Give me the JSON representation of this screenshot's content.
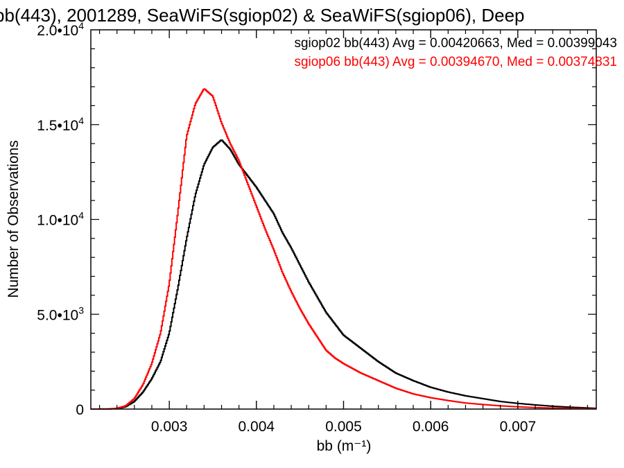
{
  "chart_data": {
    "type": "line",
    "title": "bb(443), 2001289, SeaWiFS(sgiop02) & SeaWiFS(sgiop06), Deep",
    "xlabel": "bb (m⁻¹)",
    "ylabel": "Number of Observations",
    "xlim": [
      0.0021,
      0.0079
    ],
    "ylim": [
      0,
      20000
    ],
    "xticks": [
      {
        "value": 0.003,
        "label": "0.003"
      },
      {
        "value": 0.004,
        "label": "0.004"
      },
      {
        "value": 0.005,
        "label": "0.005"
      },
      {
        "value": 0.006,
        "label": "0.006"
      },
      {
        "value": 0.007,
        "label": "0.007"
      }
    ],
    "yticks": [
      {
        "value": 0,
        "label": "0"
      },
      {
        "value": 5000,
        "label": "5.0•10³"
      },
      {
        "value": 10000,
        "label": "1.0•10⁴"
      },
      {
        "value": 15000,
        "label": "1.5•10⁴"
      },
      {
        "value": 20000,
        "label": "2.0•10⁴"
      }
    ],
    "grid": false,
    "legend_position": "top-right",
    "series": [
      {
        "name": "sgiop02",
        "color": "#000000",
        "legend": "sgiop02 bb(443) Avg = 0.00420663, Med = 0.00399043",
        "x": [
          0.0021,
          0.0023,
          0.0024,
          0.0025,
          0.0026,
          0.0027,
          0.0028,
          0.0029,
          0.003,
          0.0031,
          0.0032,
          0.0033,
          0.0034,
          0.0035,
          0.0036,
          0.0037,
          0.0038,
          0.0039,
          0.004,
          0.0041,
          0.0042,
          0.0043,
          0.0044,
          0.0045,
          0.0046,
          0.0047,
          0.0048,
          0.0049,
          0.005,
          0.0052,
          0.0054,
          0.0056,
          0.0058,
          0.006,
          0.0062,
          0.0064,
          0.0066,
          0.0068,
          0.007,
          0.0072,
          0.0074,
          0.0076,
          0.0078,
          0.0079
        ],
        "y": [
          0,
          5,
          30,
          120,
          400,
          900,
          1600,
          2500,
          4000,
          6400,
          9000,
          11300,
          12900,
          13800,
          14200,
          13700,
          12900,
          12300,
          11700,
          11000,
          10300,
          9300,
          8500,
          7600,
          6700,
          5900,
          5100,
          4500,
          3900,
          3200,
          2500,
          1900,
          1500,
          1150,
          900,
          700,
          550,
          400,
          300,
          220,
          150,
          100,
          60,
          40
        ]
      },
      {
        "name": "sgiop06",
        "color": "#ff0000",
        "legend": "sgiop06 bb(443) Avg = 0.00394670, Med = 0.00374831",
        "x": [
          0.0021,
          0.0023,
          0.0024,
          0.0025,
          0.0026,
          0.0027,
          0.0028,
          0.0029,
          0.003,
          0.0031,
          0.0032,
          0.0033,
          0.0034,
          0.0035,
          0.0036,
          0.0037,
          0.0038,
          0.0039,
          0.004,
          0.0041,
          0.0042,
          0.0043,
          0.0044,
          0.0045,
          0.0046,
          0.0047,
          0.0048,
          0.0049,
          0.005,
          0.0052,
          0.0054,
          0.0056,
          0.0058,
          0.006,
          0.0062,
          0.0064,
          0.0066,
          0.0068,
          0.007,
          0.0072,
          0.0074,
          0.0076,
          0.0078,
          0.0079
        ],
        "y": [
          0,
          5,
          40,
          170,
          550,
          1300,
          2400,
          4000,
          6600,
          10400,
          14400,
          16100,
          16900,
          16500,
          15100,
          14000,
          13100,
          11900,
          10700,
          9500,
          8400,
          7200,
          6200,
          5300,
          4500,
          3800,
          3100,
          2700,
          2400,
          1900,
          1500,
          1100,
          800,
          600,
          450,
          320,
          240,
          170,
          120,
          80,
          55,
          35,
          20,
          15
        ]
      }
    ]
  }
}
